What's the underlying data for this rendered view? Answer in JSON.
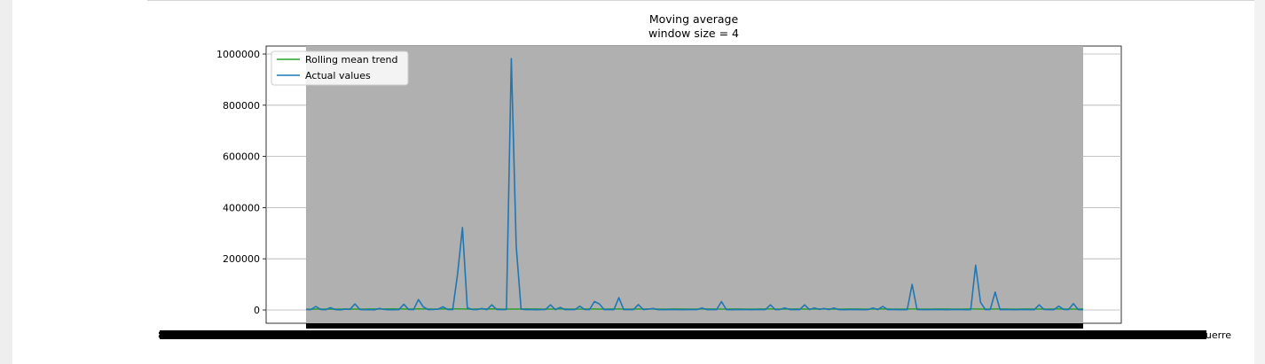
{
  "chart_data": {
    "type": "line",
    "title": "Moving average",
    "subtitle": "window size = 4",
    "xlabel": "",
    "ylabel": "",
    "ylim": [
      -50000,
      1000000
    ],
    "yticks": [
      0,
      200000,
      400000,
      600000,
      800000,
      1000000
    ],
    "ytick_labels": [
      "0",
      "200000",
      "400000",
      "600000",
      "800000",
      "1000000"
    ],
    "grid": true,
    "legend_position": "top-left",
    "shaded_band": true,
    "xtick_labels_visible": [
      "8Ale4",
      "Dauerre"
    ],
    "x_count": 160,
    "series": [
      {
        "name": "Rolling mean trend",
        "color": "#2ca02c",
        "values": [
          3000,
          3200,
          3500,
          3300,
          3600,
          3800,
          3400,
          3500,
          3700,
          3600,
          3500,
          3400,
          3600,
          3800,
          3700,
          3500,
          3900,
          4200,
          4000,
          3800,
          3700,
          3600,
          3900,
          4100,
          3800,
          3700,
          3600,
          3500,
          3700,
          3900,
          4000,
          4100,
          3800,
          3600,
          3500,
          3700,
          3800,
          3900,
          4000,
          3800,
          3600,
          3500,
          3400,
          3600,
          3800,
          4000,
          3900,
          3700,
          3500,
          3400,
          3600,
          3800,
          3900,
          3700,
          3500,
          3400,
          3600,
          3800,
          3900,
          3700,
          3500,
          3600,
          3800,
          3900,
          3700,
          3500,
          3400,
          3600,
          3700,
          3800,
          3900,
          3700,
          3500,
          3400,
          3600,
          3800,
          3900,
          3700,
          3500,
          3400,
          3600,
          3800,
          3900,
          3700,
          3500,
          3400,
          3600,
          3800,
          3900,
          3700,
          3500,
          3400,
          3600,
          3800,
          3900,
          3700,
          3500,
          3400,
          3600,
          3800,
          3900,
          3700,
          3500,
          3400,
          3600,
          3800,
          3900,
          3700,
          3500,
          3400,
          3600,
          3800,
          3900,
          3700,
          3500,
          3400,
          3600,
          3800,
          3900,
          3700,
          3500,
          3400,
          3600,
          3800,
          3900,
          3700,
          3500,
          3400,
          3600,
          3800,
          3900,
          3700,
          3500,
          3400,
          3600,
          3800,
          3900,
          3700,
          3500,
          3400,
          3600,
          3800,
          3900,
          3700,
          3500,
          3400,
          3600,
          3800,
          3900,
          3700,
          3500,
          3400,
          3600,
          3800,
          3900,
          3700,
          3500,
          3400,
          3600,
          3800
        ]
      },
      {
        "name": "Actual values",
        "color": "#1f77b4",
        "values": [
          2000,
          1500,
          14000,
          2000,
          1000,
          9000,
          1500,
          800,
          3000,
          2500,
          24000,
          2000,
          1000,
          1500,
          800,
          6000,
          2000,
          1200,
          900,
          1500,
          22000,
          1800,
          1500,
          41000,
          12000,
          1500,
          2000,
          3000,
          12000,
          1800,
          1500,
          140000,
          322000,
          8000,
          2000,
          1500,
          6000,
          1200,
          20000,
          2000,
          1500,
          2000,
          982000,
          250000,
          3000,
          1500,
          2000,
          1200,
          1500,
          2000,
          20000,
          1500,
          10000,
          1500,
          2000,
          1500,
          15000,
          2000,
          1500,
          33000,
          24000,
          1500,
          2000,
          1500,
          48000,
          1500,
          2000,
          1500,
          21000,
          1500,
          3000,
          6000,
          1500,
          1200,
          1500,
          2000,
          1500,
          1200,
          1500,
          2000,
          1500,
          8000,
          1500,
          2000,
          1500,
          33000,
          1500,
          1200,
          1500,
          2000,
          1500,
          1200,
          1500,
          2000,
          1500,
          20000,
          1500,
          2000,
          8000,
          1500,
          2000,
          1500,
          20000,
          1500,
          8000,
          2000,
          6000,
          1500,
          8000,
          1500,
          1200,
          1500,
          2000,
          1500,
          1200,
          1500,
          8000,
          1500,
          14000,
          1500,
          2000,
          1500,
          1200,
          1500,
          100000,
          2000,
          1500,
          1200,
          1500,
          2000,
          1500,
          1200,
          1500,
          2000,
          1500,
          1200,
          1500,
          175000,
          30000,
          1500,
          2000,
          70000,
          1500,
          2000,
          1500,
          1200,
          1500,
          2000,
          1500,
          1200,
          20000,
          2000,
          1500,
          1200,
          15000,
          2000,
          1500,
          25000,
          1500,
          1200
        ]
      }
    ]
  }
}
